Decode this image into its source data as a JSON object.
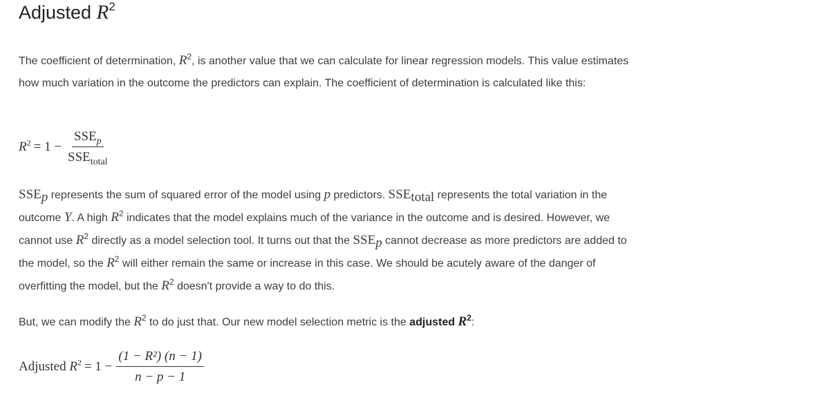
{
  "title": {
    "text": "Adjusted",
    "var": "R",
    "exp": "2"
  },
  "p1": {
    "t1": "The coefficient of determination, ",
    "t2": ", is another value that we can calculate for linear regression models. This value estimates how much variation in the outcome the predictors can explain. The coefficient of determination is calculated like this:"
  },
  "eq1": {
    "lhs_var": "R",
    "lhs_exp": "2",
    "rhs": "= 1 −",
    "num": "SSE",
    "num_sub": "p",
    "den": "SSE",
    "den_sub": "total"
  },
  "p2": {
    "sse": "SSE",
    "sse_sub_p": "p",
    "t1": " represents the sum of squared error of the model using ",
    "p": "p",
    "t2": " predictors. ",
    "sse_sub_total": "total",
    "t3": " represents the total variation in the outcome ",
    "Y": "Y",
    "t4": ". A high ",
    "t5": " indicates that the model explains much of the variance in the outcome and is desired. However, we cannot use ",
    "t6": " directly as a model selection tool. It turns out that the ",
    "t7": " cannot decrease as more predictors are added to the model, so the ",
    "t8": " will either remain the same or increase in this case. We should be acutely aware of the danger of overfitting the model, but the ",
    "t9": " doesn't provide a way to do this."
  },
  "p3": {
    "t1": "But, we can modify the ",
    "t2": " to do just that. Our new model selection metric is the ",
    "bold": "adjusted",
    "t3": ":"
  },
  "eq2": {
    "lhs_word": "Adjusted",
    "rhs": "= 1 −",
    "num": "(1 − R²) (n − 1)",
    "den": "n − p − 1"
  },
  "sym": {
    "R": "R",
    "two": "2"
  }
}
